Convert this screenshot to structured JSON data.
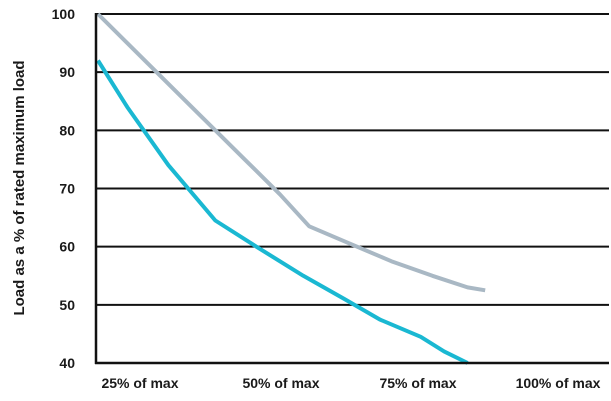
{
  "chart_data": {
    "type": "line",
    "title": "",
    "xlabel": "",
    "ylabel": "Load as a % of rated maximum load",
    "categories": [
      "25% of max",
      "50% of max",
      "75% of max",
      "100% of max"
    ],
    "x": [
      25,
      50,
      75,
      100
    ],
    "yticks": [
      "40",
      "50",
      "60",
      "70",
      "80",
      "90",
      "100"
    ],
    "ylim": [
      40,
      100
    ],
    "xlim": [
      25,
      100
    ],
    "grid": true,
    "series": [
      {
        "color": "#a9b8c4",
        "points": [
          [
            25,
            100
          ],
          [
            34,
            91
          ],
          [
            42,
            83
          ],
          [
            50,
            75
          ],
          [
            56,
            69
          ],
          [
            61,
            63.5
          ],
          [
            68,
            60.5
          ],
          [
            75,
            57.5
          ],
          [
            82,
            55
          ],
          [
            88,
            53
          ],
          [
            91,
            52.5
          ]
        ]
      },
      {
        "color": "#1ab8d2",
        "points": [
          [
            25,
            92
          ],
          [
            30,
            84
          ],
          [
            37,
            74
          ],
          [
            45,
            64.5
          ],
          [
            52,
            60
          ],
          [
            60,
            55
          ],
          [
            67,
            51
          ],
          [
            73,
            47.5
          ],
          [
            80,
            44.5
          ],
          [
            84,
            42
          ],
          [
            88,
            40
          ]
        ]
      }
    ]
  }
}
